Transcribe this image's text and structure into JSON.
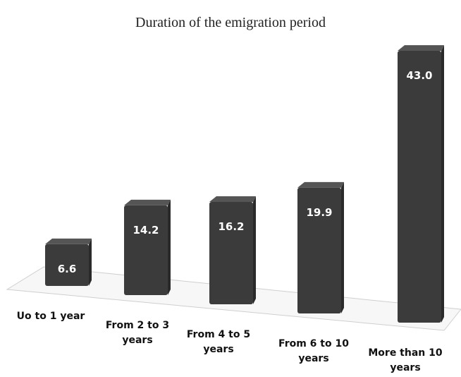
{
  "chart_data": {
    "type": "bar",
    "title": "Duration of the emigration period",
    "categories": [
      "Uo to 1 year",
      "From 2 to 3 years",
      "From 4 to 5 years",
      "From 6 to 10 years",
      "More than 10 years"
    ],
    "values": [
      6.6,
      14.2,
      16.2,
      19.9,
      43.0
    ],
    "value_labels": [
      "6.6",
      "14.2",
      "16.2",
      "19.9",
      "43.0"
    ],
    "color": "#3b3b3b"
  }
}
